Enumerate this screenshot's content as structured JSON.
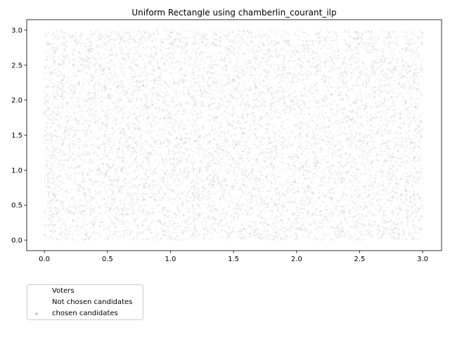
{
  "chart_data": {
    "type": "scatter",
    "title": "Uniform Rectangle using chamberlin_courant_ilp",
    "xlabel": "",
    "ylabel": "",
    "xlim": [
      -0.14,
      3.15
    ],
    "ylim": [
      -0.15,
      3.15
    ],
    "x_ticks": [
      "0.0",
      "0.5",
      "1.0",
      "1.5",
      "2.0",
      "2.5",
      "3.0"
    ],
    "y_ticks": [
      "0.0",
      "0.5",
      "1.0",
      "1.5",
      "2.0",
      "2.5",
      "3.0"
    ],
    "grid": false,
    "legend_position": "lower-left, below plot",
    "series": [
      {
        "name": "Voters",
        "color": "#ffffff",
        "point_count": 0
      },
      {
        "name": "Not chosen candidates",
        "color": "#ffffff",
        "point_count": 0
      },
      {
        "name": "chosen candidates",
        "color": "#bdbdbd",
        "point_count": 9000,
        "distribution": "uniform",
        "x_range": [
          0.0,
          3.0
        ],
        "y_range": [
          0.0,
          3.0
        ]
      }
    ]
  }
}
